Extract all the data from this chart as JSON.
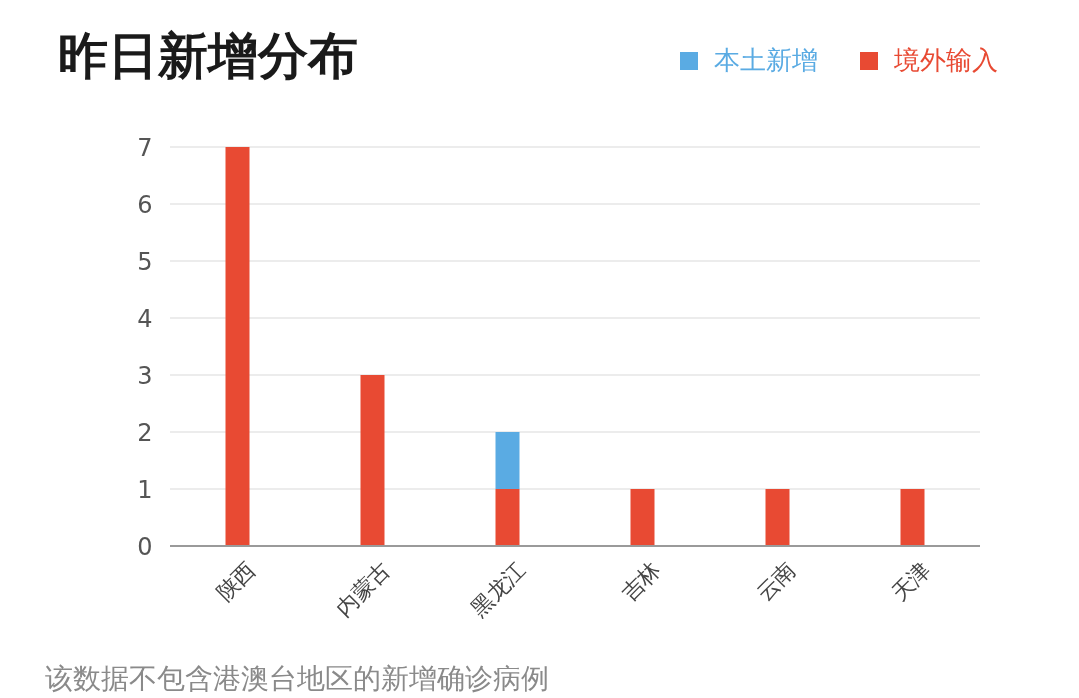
{
  "chart_data": {
    "type": "bar",
    "title": "昨日新增分布",
    "categories": [
      "陕西",
      "内蒙古",
      "黑龙江",
      "吉林",
      "云南",
      "天津"
    ],
    "series": [
      {
        "name": "境外输入",
        "color": "#e84a33",
        "values": [
          7,
          3,
          1,
          1,
          1,
          1
        ]
      },
      {
        "name": "本土新增",
        "color": "#5aabe3",
        "values": [
          0,
          0,
          1,
          0,
          0,
          0
        ]
      }
    ],
    "stacked": true,
    "ylim": [
      0,
      7
    ],
    "yticks": [
      0,
      1,
      2,
      3,
      4,
      5,
      6,
      7
    ],
    "grid": "y",
    "legend": "top right",
    "annotations": [
      "该数据不包含港澳台地区的新增确诊病例"
    ]
  }
}
